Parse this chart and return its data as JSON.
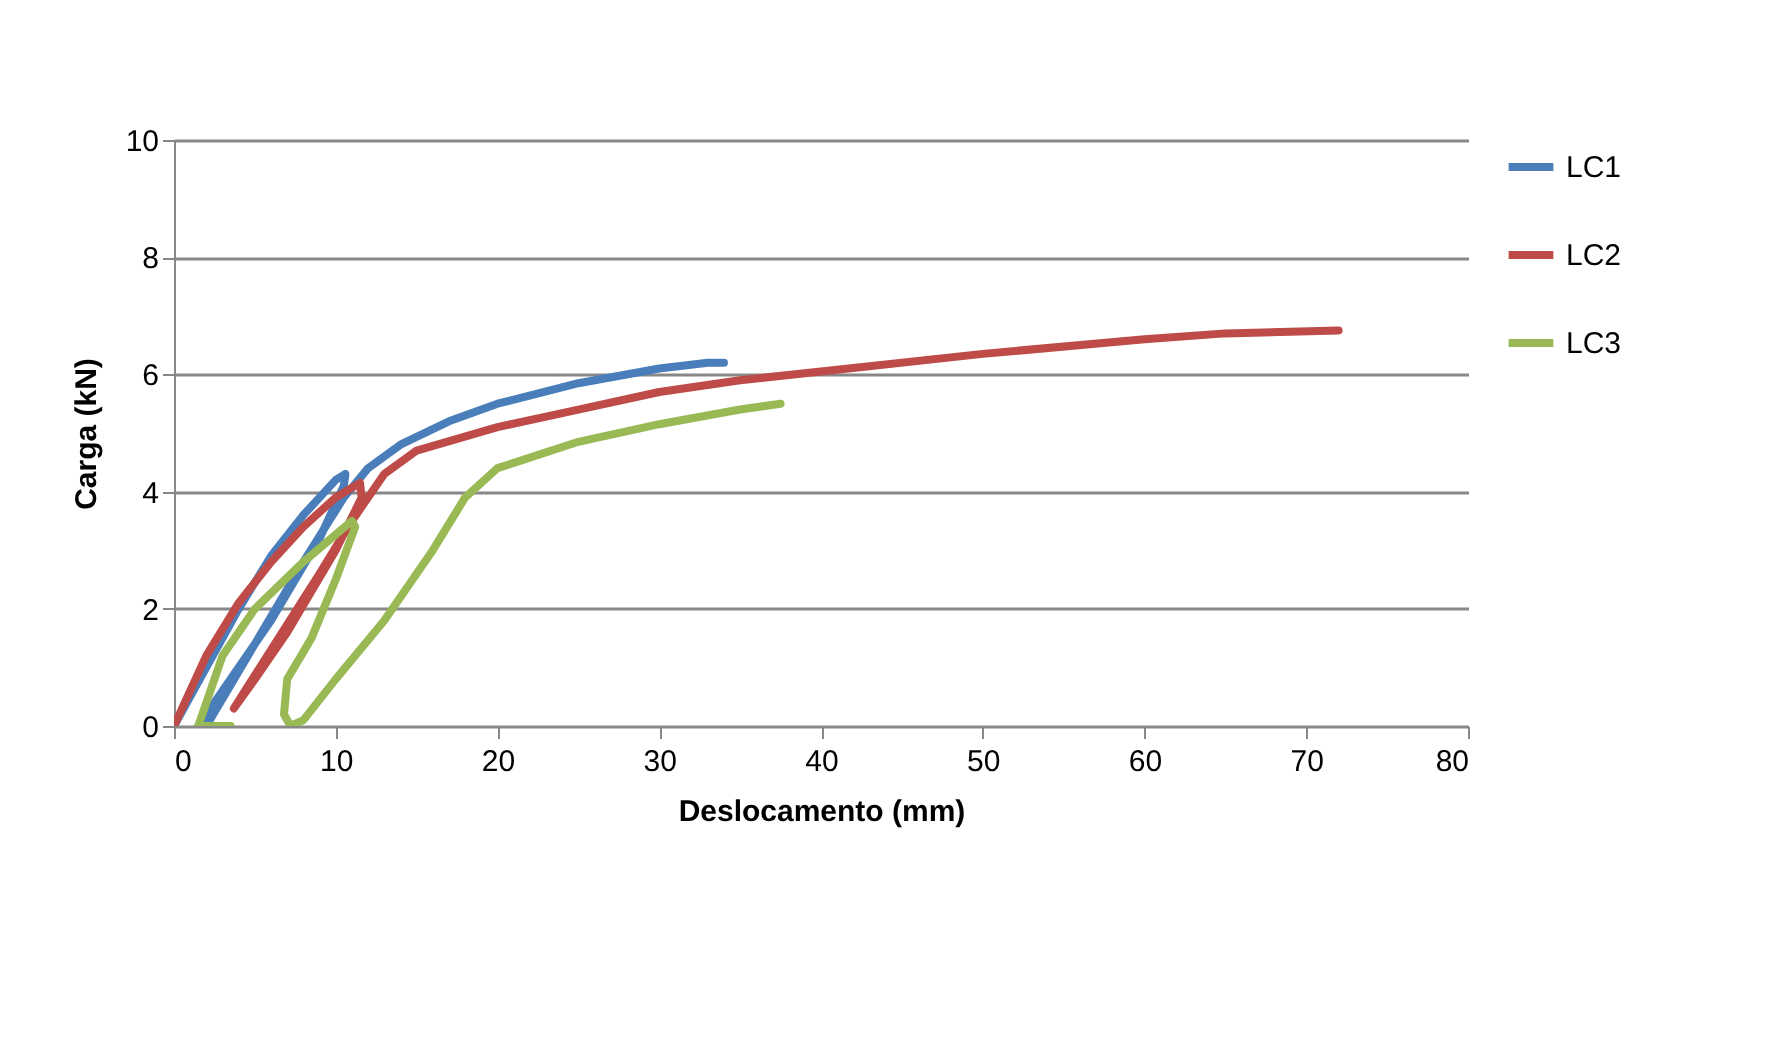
{
  "chart_data": {
    "type": "line",
    "xlabel": "Deslocamento (mm)",
    "ylabel": "Carga (kN)",
    "xlim": [
      0,
      80
    ],
    "xticks": [
      0,
      10,
      20,
      30,
      40,
      50,
      60,
      70,
      80
    ],
    "ylim": [
      0,
      10
    ],
    "yticks": [
      0,
      2,
      4,
      6,
      8,
      10
    ],
    "grid": "y",
    "legend": "right",
    "marker": "none",
    "line_style": "solid",
    "series": [
      {
        "name": "LC1",
        "color": "#4a7ebb",
        "x": [
          0,
          2,
          4,
          6,
          8,
          10,
          10.6,
          10.5,
          9,
          6,
          3,
          1.5,
          2,
          5,
          8,
          10.5,
          12,
          14,
          17,
          20,
          25,
          30,
          33,
          34
        ],
        "values": [
          0,
          1,
          2,
          2.9,
          3.6,
          4.2,
          4.3,
          4.1,
          3.2,
          1.8,
          0.6,
          0,
          0,
          1.4,
          2.8,
          3.9,
          4.4,
          4.8,
          5.2,
          5.5,
          5.85,
          6.1,
          6.2,
          6.2
        ]
      },
      {
        "name": "LC2",
        "color": "#be4b48",
        "x": [
          0,
          2,
          4,
          6,
          8,
          10,
          11.5,
          11.6,
          10,
          7,
          5,
          3.7,
          6,
          9,
          11,
          13,
          15,
          20,
          25,
          30,
          35,
          40,
          50,
          60,
          65,
          72
        ],
        "values": [
          0,
          1.2,
          2.1,
          2.8,
          3.4,
          3.9,
          4.15,
          3.9,
          3,
          1.6,
          0.8,
          0.3,
          1.3,
          2.6,
          3.5,
          4.3,
          4.7,
          5.1,
          5.4,
          5.7,
          5.9,
          6.05,
          6.35,
          6.6,
          6.7,
          6.75
        ]
      },
      {
        "name": "LC3",
        "color": "#98b954",
        "x": [
          3.5,
          1.5,
          3,
          5,
          8,
          11,
          11.2,
          10,
          8.5,
          7,
          6.8,
          7.2,
          8,
          10,
          13,
          16,
          18,
          20,
          25,
          30,
          35,
          37.5
        ],
        "values": [
          0,
          0,
          1.2,
          2,
          2.8,
          3.5,
          3.4,
          2.5,
          1.5,
          0.8,
          0.2,
          0,
          0.1,
          0.8,
          1.8,
          3,
          3.9,
          4.4,
          4.85,
          5.15,
          5.4,
          5.5
        ]
      }
    ]
  }
}
